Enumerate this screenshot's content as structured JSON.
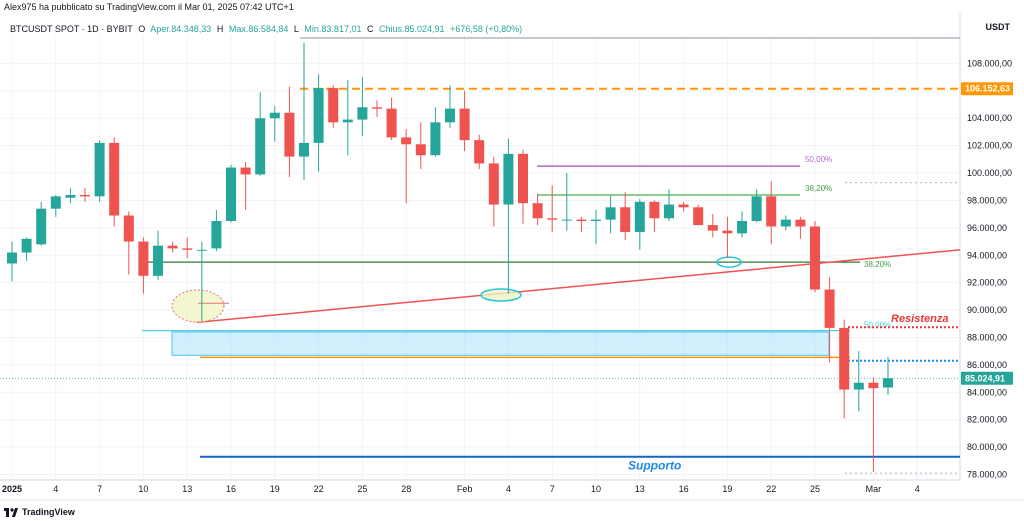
{
  "header": {
    "publisher": "Alex975 ha pubblicato su TradingView.com il Mar 01, 2025 07:42 UTC+1",
    "symbol": "BTCUSDT SPOT · 1D · BYBIT",
    "open_label": "O",
    "open_value": "Aper.84.348,33",
    "high_label": "H",
    "high_value": "Max.86.584,84",
    "low_label": "L",
    "low_value": "Min.83.817,01",
    "close_label": "C",
    "close_value": "Chius.85.024,91",
    "change": "+676,58 (+0,80%)",
    "currency": "USDT"
  },
  "footer": {
    "brand": "TradingView"
  },
  "colors": {
    "up": "#26a69a",
    "down": "#ef5350",
    "orange": "#ff9800",
    "blue": "#2962ff",
    "green": "#43a047",
    "purple": "#9c27b0"
  },
  "chart_data": {
    "type": "candlestick",
    "ylim": [
      77600,
      110000
    ],
    "yticks": [
      {
        "v": 78000,
        "t": "78.000,00"
      },
      {
        "v": 80000,
        "t": "80.000,00"
      },
      {
        "v": 82000,
        "t": "82.000,00"
      },
      {
        "v": 84000,
        "t": "84.000,00"
      },
      {
        "v": 86000,
        "t": "86.000,00"
      },
      {
        "v": 88000,
        "t": "88.000,00"
      },
      {
        "v": 90000,
        "t": "90.000,00"
      },
      {
        "v": 92000,
        "t": "92.000,00"
      },
      {
        "v": 94000,
        "t": "94.000,00"
      },
      {
        "v": 96000,
        "t": "96.000,00"
      },
      {
        "v": 98000,
        "t": "98.000,00"
      },
      {
        "v": 100000,
        "t": "100.000,00"
      },
      {
        "v": 102000,
        "t": "102.000,00"
      },
      {
        "v": 104000,
        "t": "104.000,00"
      },
      {
        "v": 106000,
        "t": "106.000,00"
      },
      {
        "v": 108000,
        "t": "108.000,00"
      }
    ],
    "xticks": [
      {
        "i": 0,
        "t": "2025"
      },
      {
        "i": 3,
        "t": "4"
      },
      {
        "i": 6,
        "t": "7"
      },
      {
        "i": 9,
        "t": "10"
      },
      {
        "i": 12,
        "t": "13"
      },
      {
        "i": 15,
        "t": "16"
      },
      {
        "i": 18,
        "t": "19"
      },
      {
        "i": 21,
        "t": "22"
      },
      {
        "i": 24,
        "t": "25"
      },
      {
        "i": 27,
        "t": "28"
      },
      {
        "i": 31,
        "t": "Feb"
      },
      {
        "i": 34,
        "t": "4"
      },
      {
        "i": 37,
        "t": "7"
      },
      {
        "i": 40,
        "t": "10"
      },
      {
        "i": 43,
        "t": "13"
      },
      {
        "i": 46,
        "t": "16"
      },
      {
        "i": 49,
        "t": "19"
      },
      {
        "i": 52,
        "t": "22"
      },
      {
        "i": 55,
        "t": "25"
      },
      {
        "i": 59,
        "t": "Mar"
      },
      {
        "i": 62,
        "t": "4"
      }
    ],
    "candles": [
      {
        "d": "Dec 31",
        "o": 93400,
        "h": 95000,
        "l": 92100,
        "c": 94200
      },
      {
        "d": "Jan 1",
        "o": 94200,
        "h": 95300,
        "l": 93600,
        "c": 95200
      },
      {
        "d": "Jan 2",
        "o": 94800,
        "h": 97900,
        "l": 94700,
        "c": 97400
      },
      {
        "d": "Jan 3",
        "o": 97400,
        "h": 98400,
        "l": 96800,
        "c": 98300
      },
      {
        "d": "Jan 4",
        "o": 98200,
        "h": 98900,
        "l": 97800,
        "c": 98400
      },
      {
        "d": "Jan 5",
        "o": 98400,
        "h": 98900,
        "l": 97900,
        "c": 98300
      },
      {
        "d": "Jan 6",
        "o": 98300,
        "h": 102400,
        "l": 97900,
        "c": 102200
      },
      {
        "d": "Jan 7",
        "o": 102200,
        "h": 102600,
        "l": 96100,
        "c": 96900
      },
      {
        "d": "Jan 8",
        "o": 96900,
        "h": 97200,
        "l": 92600,
        "c": 95000
      },
      {
        "d": "Jan 9",
        "o": 95000,
        "h": 95300,
        "l": 91200,
        "c": 92500
      },
      {
        "d": "Jan 10",
        "o": 92500,
        "h": 95800,
        "l": 92200,
        "c": 94700
      },
      {
        "d": "Jan 11",
        "o": 94700,
        "h": 95000,
        "l": 94200,
        "c": 94500
      },
      {
        "d": "Jan 12",
        "o": 94500,
        "h": 95300,
        "l": 93800,
        "c": 94400
      },
      {
        "d": "Jan 13",
        "o": 94400,
        "h": 95000,
        "l": 89200,
        "c": 94400
      },
      {
        "d": "Jan 14",
        "o": 94500,
        "h": 97300,
        "l": 94300,
        "c": 96500
      },
      {
        "d": "Jan 15",
        "o": 96500,
        "h": 100600,
        "l": 96400,
        "c": 100400
      },
      {
        "d": "Jan 16",
        "o": 100400,
        "h": 100800,
        "l": 97300,
        "c": 99900
      },
      {
        "d": "Jan 17",
        "o": 99900,
        "h": 105900,
        "l": 99800,
        "c": 104000
      },
      {
        "d": "Jan 18",
        "o": 104000,
        "h": 104900,
        "l": 102300,
        "c": 104400
      },
      {
        "d": "Jan 19",
        "o": 104400,
        "h": 106300,
        "l": 99700,
        "c": 101200
      },
      {
        "d": "Jan 20",
        "o": 101200,
        "h": 109500,
        "l": 99500,
        "c": 102200
      },
      {
        "d": "Jan 21",
        "o": 102200,
        "h": 107200,
        "l": 100100,
        "c": 106200
      },
      {
        "d": "Jan 22",
        "o": 106200,
        "h": 106400,
        "l": 103300,
        "c": 103700
      },
      {
        "d": "Jan 23",
        "o": 103700,
        "h": 106800,
        "l": 101300,
        "c": 103900
      },
      {
        "d": "Jan 24",
        "o": 103900,
        "h": 107000,
        "l": 102700,
        "c": 104800
      },
      {
        "d": "Jan 25",
        "o": 104800,
        "h": 105300,
        "l": 104100,
        "c": 104700
      },
      {
        "d": "Jan 26",
        "o": 104700,
        "h": 105500,
        "l": 102400,
        "c": 102600
      },
      {
        "d": "Jan 27",
        "o": 102600,
        "h": 103200,
        "l": 97800,
        "c": 102100
      },
      {
        "d": "Jan 28",
        "o": 102100,
        "h": 103700,
        "l": 100300,
        "c": 101300
      },
      {
        "d": "Jan 29",
        "o": 101300,
        "h": 104800,
        "l": 101200,
        "c": 103700
      },
      {
        "d": "Jan 30",
        "o": 103700,
        "h": 106400,
        "l": 103300,
        "c": 104700
      },
      {
        "d": "Jan 31",
        "o": 104700,
        "h": 106000,
        "l": 101600,
        "c": 102400
      },
      {
        "d": "Feb 1",
        "o": 102400,
        "h": 102800,
        "l": 100300,
        "c": 100700
      },
      {
        "d": "Feb 2",
        "o": 100700,
        "h": 101200,
        "l": 96100,
        "c": 97700
      },
      {
        "d": "Feb 3",
        "o": 97700,
        "h": 102500,
        "l": 91200,
        "c": 101400
      },
      {
        "d": "Feb 4",
        "o": 101400,
        "h": 101700,
        "l": 96300,
        "c": 97800
      },
      {
        "d": "Feb 5",
        "o": 97800,
        "h": 98500,
        "l": 96200,
        "c": 96700
      },
      {
        "d": "Feb 6",
        "o": 96700,
        "h": 99100,
        "l": 95700,
        "c": 96600
      },
      {
        "d": "Feb 7",
        "o": 96600,
        "h": 100000,
        "l": 95800,
        "c": 96600
      },
      {
        "d": "Feb 8",
        "o": 96600,
        "h": 96800,
        "l": 95700,
        "c": 96500
      },
      {
        "d": "Feb 9",
        "o": 96500,
        "h": 97300,
        "l": 94800,
        "c": 96600
      },
      {
        "d": "Feb 10",
        "o": 96600,
        "h": 98400,
        "l": 95600,
        "c": 97500
      },
      {
        "d": "Feb 11",
        "o": 97500,
        "h": 98600,
        "l": 95100,
        "c": 95700
      },
      {
        "d": "Feb 12",
        "o": 95700,
        "h": 98100,
        "l": 94400,
        "c": 97900
      },
      {
        "d": "Feb 13",
        "o": 97900,
        "h": 98000,
        "l": 95700,
        "c": 96700
      },
      {
        "d": "Feb 14",
        "o": 96700,
        "h": 98800,
        "l": 96500,
        "c": 97700
      },
      {
        "d": "Feb 15",
        "o": 97700,
        "h": 97900,
        "l": 97200,
        "c": 97500
      },
      {
        "d": "Feb 16",
        "o": 97500,
        "h": 97700,
        "l": 96200,
        "c": 96200
      },
      {
        "d": "Feb 17",
        "o": 96200,
        "h": 97000,
        "l": 95300,
        "c": 95800
      },
      {
        "d": "Feb 18",
        "o": 95800,
        "h": 96800,
        "l": 93800,
        "c": 95600
      },
      {
        "d": "Feb 19",
        "o": 95600,
        "h": 97200,
        "l": 95300,
        "c": 96500
      },
      {
        "d": "Feb 20",
        "o": 96500,
        "h": 98800,
        "l": 96400,
        "c": 98300
      },
      {
        "d": "Feb 21",
        "o": 98300,
        "h": 99400,
        "l": 94800,
        "c": 96100
      },
      {
        "d": "Feb 22",
        "o": 96100,
        "h": 96900,
        "l": 95800,
        "c": 96600
      },
      {
        "d": "Feb 23",
        "o": 96600,
        "h": 96800,
        "l": 95200,
        "c": 96100
      },
      {
        "d": "Feb 24",
        "o": 96100,
        "h": 96500,
        "l": 91300,
        "c": 91500
      },
      {
        "d": "Feb 25",
        "o": 91500,
        "h": 92400,
        "l": 86200,
        "c": 88700
      },
      {
        "d": "Feb 26",
        "o": 88700,
        "h": 89300,
        "l": 82100,
        "c": 84200
      },
      {
        "d": "Feb 27",
        "o": 84200,
        "h": 87000,
        "l": 82600,
        "c": 84700
      },
      {
        "d": "Feb 28",
        "o": 84700,
        "h": 85100,
        "l": 78200,
        "c": 84300
      },
      {
        "d": "Mar 1",
        "o": 84348.33,
        "h": 86584.84,
        "l": 83817.01,
        "c": 85024.91
      }
    ],
    "annotations": {
      "resistance_label": "Resistenza",
      "support_label": "Supporto",
      "fib_50_top": "50,00%",
      "fib_382_top": "38,20%",
      "fib_382_mid": "38,20%",
      "fib_50_low": "50,00%",
      "price_tag_high": "106.152,63",
      "price_tag_last": "85.024,91"
    },
    "levels": {
      "orange_high": 106152.63,
      "fib_50_top": 100500,
      "fib_382_top": 98400,
      "green_mid": 93500,
      "zone_top": 88400,
      "zone_bottom": 86700,
      "zone_cyan_line": 88500,
      "orange_support": 86550,
      "resistance": 88750,
      "blue_dot": 86300,
      "support": 79300,
      "dotted_top": 99300,
      "dotted_low": 78100
    },
    "trendline": {
      "i1": 13,
      "v1": 89100,
      "i2": 64,
      "v2": 94300
    }
  }
}
